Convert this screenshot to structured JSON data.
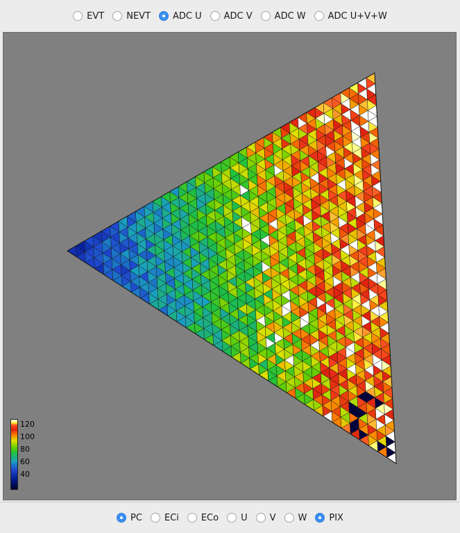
{
  "top_options": [
    {
      "label": "EVT",
      "selected": false
    },
    {
      "label": "NEVT",
      "selected": false
    },
    {
      "label": "ADC U",
      "selected": true
    },
    {
      "label": "ADC V",
      "selected": false
    },
    {
      "label": "ADC W",
      "selected": false
    },
    {
      "label": "ADC U+V+W",
      "selected": false
    }
  ],
  "bottom_options": [
    {
      "label": "PC",
      "selected": true
    },
    {
      "label": "ECi",
      "selected": false
    },
    {
      "label": "ECo",
      "selected": false
    },
    {
      "label": "U",
      "selected": false
    },
    {
      "label": "V",
      "selected": false
    },
    {
      "label": "W",
      "selected": false
    },
    {
      "label": "PIX",
      "selected": true
    }
  ],
  "colorbar": {
    "ticks": [
      "120",
      "100",
      "80",
      "60",
      "40"
    ],
    "min": 30,
    "max": 125
  },
  "colors": {
    "panel_background": "#808080",
    "selected_radio": "#3b8ff0"
  }
}
